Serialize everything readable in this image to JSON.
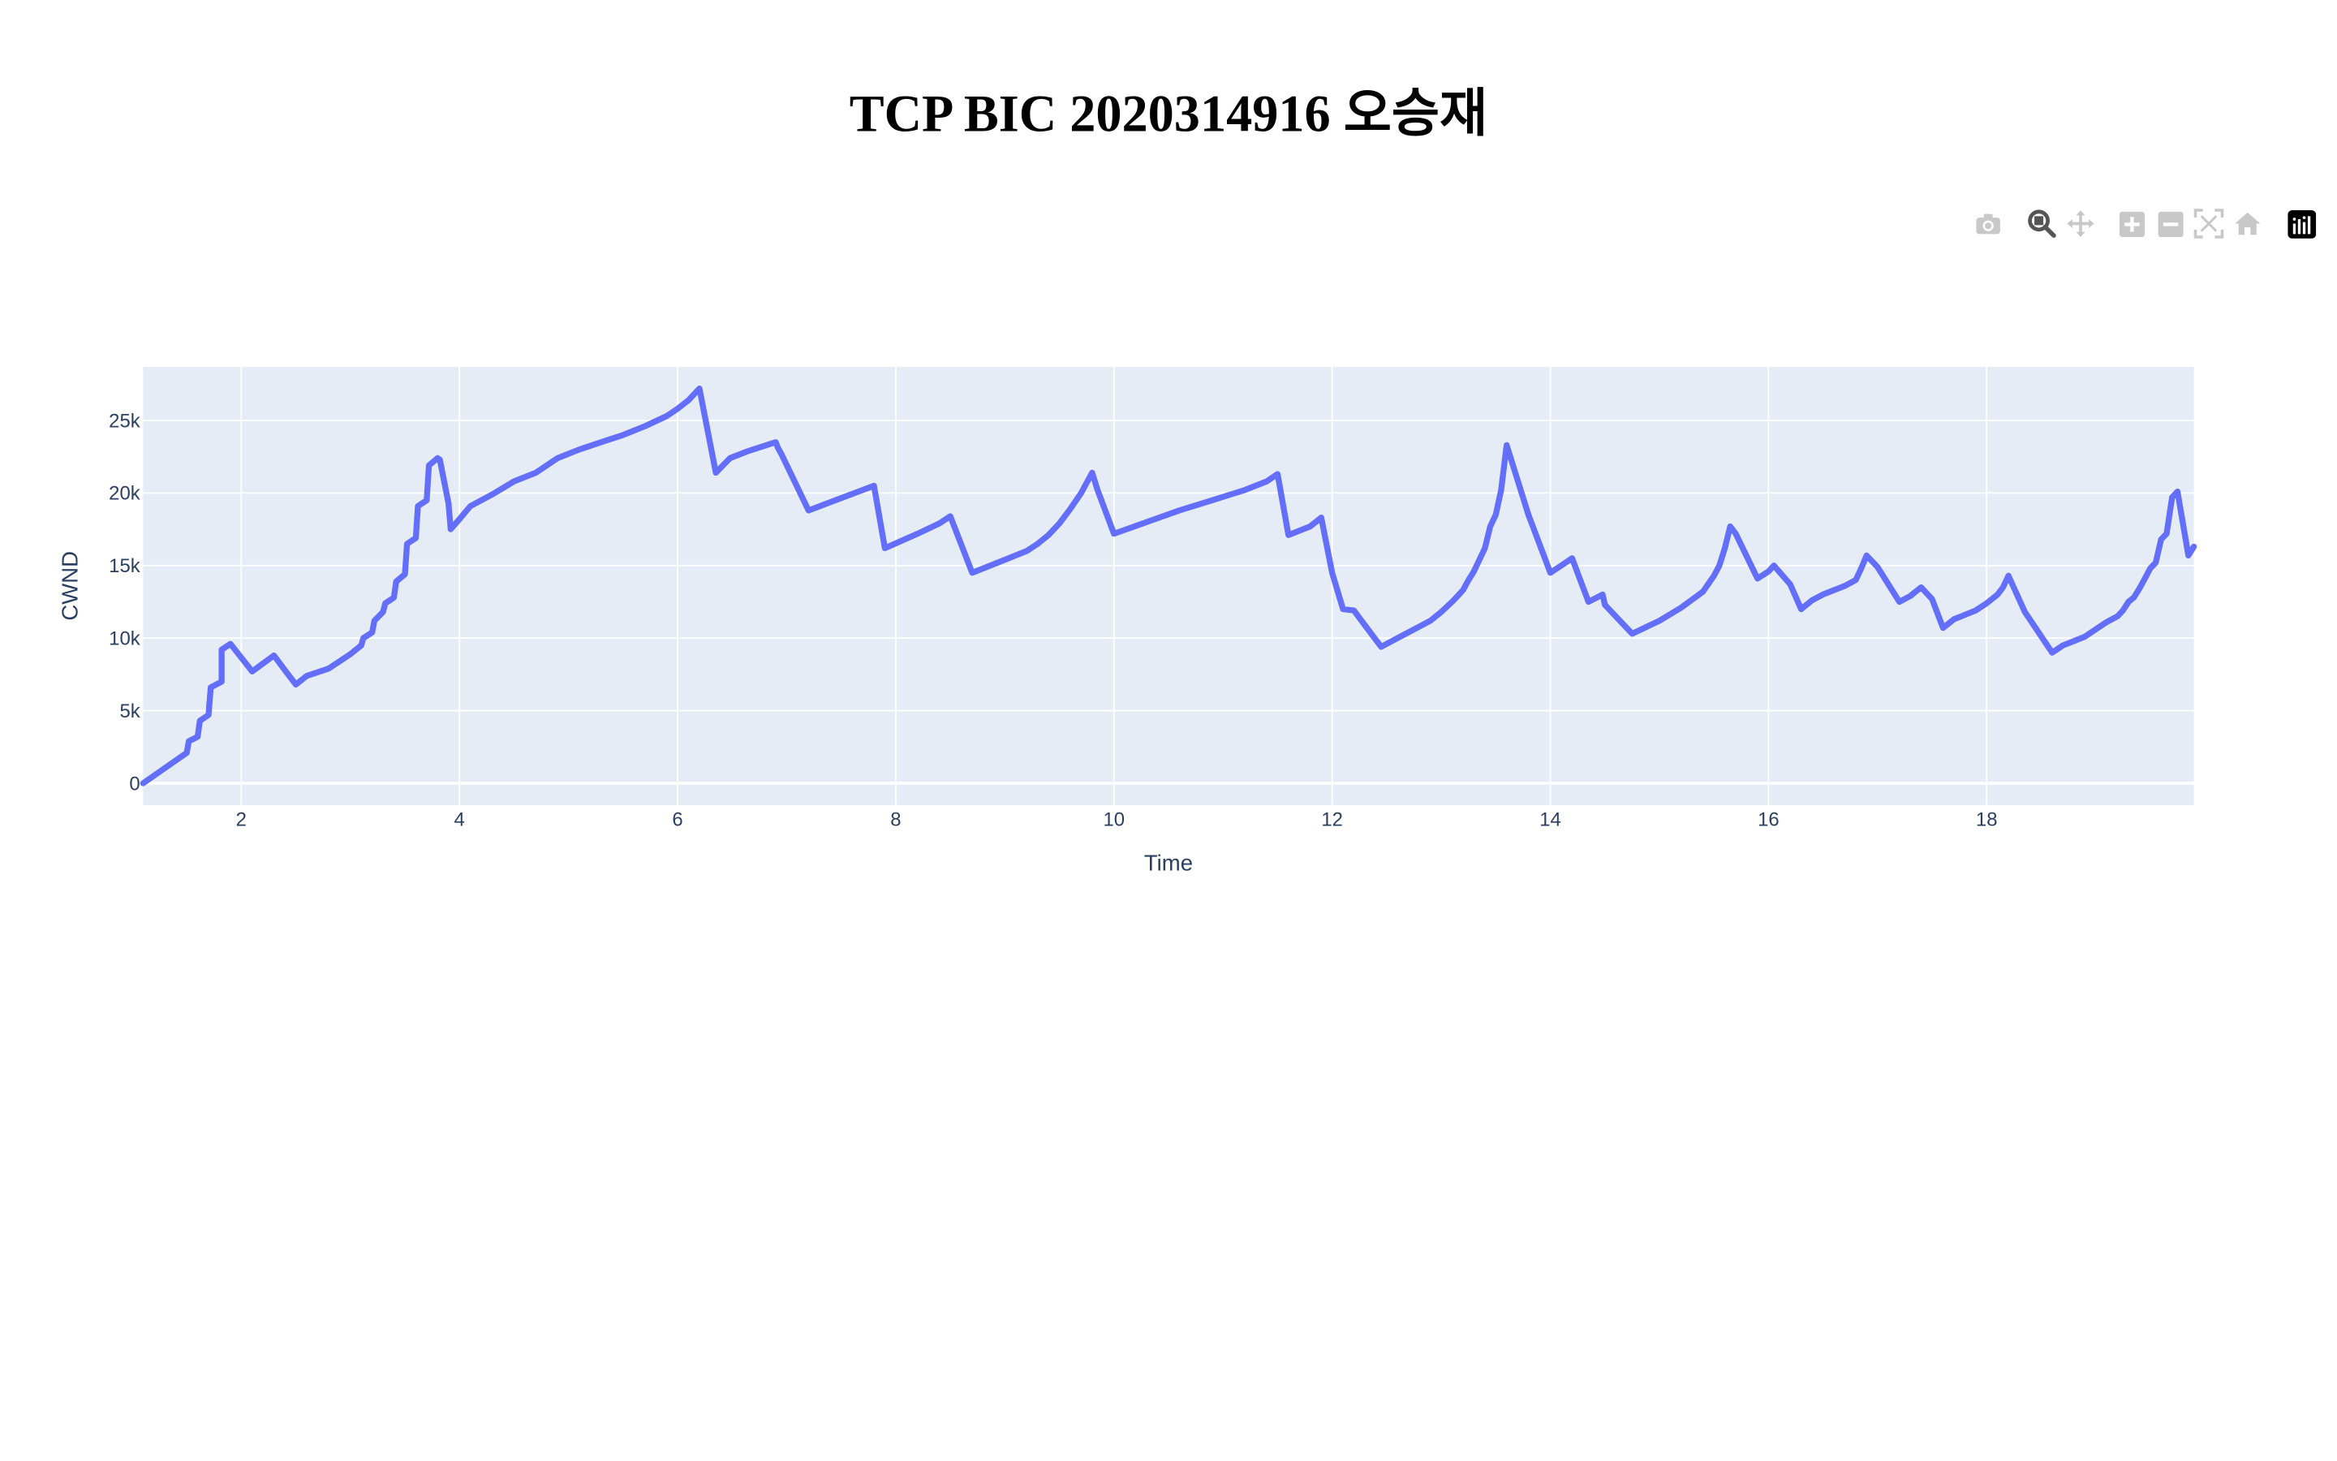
{
  "title": "TCP BIC 2020314916 오승재",
  "modebar": [
    {
      "icon": "camera-icon",
      "label": "Download plot as a png",
      "active": false
    },
    {
      "icon": "zoom-icon",
      "label": "Zoom",
      "active": true
    },
    {
      "icon": "pan-icon",
      "label": "Pan",
      "active": false
    },
    {
      "icon": "zoom-in-icon",
      "label": "Zoom in",
      "active": false
    },
    {
      "icon": "zoom-out-icon",
      "label": "Zoom out",
      "active": false
    },
    {
      "icon": "autoscale-icon",
      "label": "Autoscale",
      "active": false
    },
    {
      "icon": "home-icon",
      "label": "Reset axes",
      "active": false
    },
    {
      "icon": "plotly-logo-icon",
      "label": "Produced with Plotly",
      "active": false
    }
  ],
  "colors": {
    "plot_bg": "#e5ecf6",
    "grid": "#ffffff",
    "line": "#636efa",
    "text": "#2a3f5f"
  },
  "chart_data": {
    "type": "line",
    "title": "TCP BIC 2020314916 오승재",
    "xlabel": "Time",
    "ylabel": "CWND",
    "xlim": [
      1.1,
      19.9
    ],
    "ylim": [
      -1500,
      28700
    ],
    "x_ticks": [
      2,
      4,
      6,
      8,
      10,
      12,
      14,
      16,
      18
    ],
    "x_tick_labels": [
      "2",
      "4",
      "6",
      "8",
      "10",
      "12",
      "14",
      "16",
      "18"
    ],
    "y_ticks": [
      0,
      5000,
      10000,
      15000,
      20000,
      25000
    ],
    "y_tick_labels": [
      "0",
      "5k",
      "10k",
      "15k",
      "20k",
      "25k"
    ],
    "grid": true,
    "legend": "none",
    "series": [
      {
        "x": [
          1.1,
          1.5,
          1.52,
          1.6,
          1.62,
          1.7,
          1.72,
          1.82,
          1.82,
          1.9,
          2.1,
          2.3,
          2.4,
          2.5,
          2.6,
          2.8,
          3.0,
          3.1,
          3.12,
          3.2,
          3.22,
          3.3,
          3.32,
          3.4,
          3.42,
          3.5,
          3.52,
          3.6,
          3.62,
          3.7,
          3.72,
          3.8,
          3.82,
          3.9,
          3.92,
          4.0,
          4.1,
          4.3,
          4.5,
          4.7,
          4.9,
          5.1,
          5.3,
          5.5,
          5.7,
          5.9,
          6.0,
          6.1,
          6.2,
          6.35,
          6.48,
          6.65,
          6.9,
          6.92,
          6.95,
          7.2,
          7.8,
          7.9,
          8.2,
          8.4,
          8.5,
          8.7,
          9.0,
          9.2,
          9.3,
          9.4,
          9.5,
          9.6,
          9.7,
          9.8,
          9.85,
          10.0,
          10.3,
          10.6,
          10.9,
          11.2,
          11.4,
          11.5,
          11.6,
          11.8,
          11.9,
          12.0,
          12.1,
          12.2,
          12.3,
          12.45,
          12.6,
          12.8,
          12.9,
          13.0,
          13.1,
          13.15,
          13.2,
          13.25,
          13.3,
          13.35,
          13.4,
          13.45,
          13.5,
          13.55,
          13.6,
          13.8,
          14.0,
          14.1,
          14.2,
          14.35,
          14.48,
          14.5,
          14.55,
          14.75,
          15.0,
          15.2,
          15.4,
          15.5,
          15.55,
          15.6,
          15.65,
          15.7,
          15.9,
          16.0,
          16.05,
          16.2,
          16.3,
          16.4,
          16.5,
          16.7,
          16.8,
          16.85,
          16.9,
          17.0,
          17.2,
          17.3,
          17.4,
          17.5,
          17.6,
          17.7,
          17.9,
          18.0,
          18.1,
          18.15,
          18.2,
          18.35,
          18.6,
          18.7,
          18.8,
          18.9,
          19.0,
          19.1,
          19.2,
          19.25,
          19.3,
          19.35,
          19.4,
          19.45,
          19.5,
          19.55,
          19.6,
          19.65,
          19.7,
          19.75,
          19.85,
          19.9
        ],
        "y": [
          0,
          2100,
          2900,
          3200,
          4300,
          4700,
          6600,
          7000,
          9200,
          9600,
          7700,
          8800,
          7800,
          6800,
          7400,
          7900,
          8900,
          9500,
          10000,
          10400,
          11200,
          11800,
          12400,
          12800,
          13900,
          14400,
          16500,
          16900,
          19100,
          19500,
          21900,
          22400,
          22300,
          19300,
          17500,
          18200,
          19100,
          19900,
          20800,
          21400,
          22400,
          23000,
          23500,
          24000,
          24600,
          25300,
          25800,
          26400,
          27200,
          21400,
          22400,
          22900,
          23500,
          23100,
          22700,
          18800,
          20500,
          16200,
          17200,
          17900,
          18400,
          14500,
          15400,
          16000,
          16500,
          17100,
          17900,
          18900,
          20000,
          21400,
          20200,
          17200,
          18000,
          18800,
          19500,
          20200,
          20800,
          21300,
          17100,
          17700,
          18300,
          14500,
          12000,
          11900,
          10900,
          9400,
          10000,
          10800,
          11200,
          11800,
          12500,
          12900,
          13300,
          14000,
          14600,
          15400,
          16200,
          17700,
          18500,
          20200,
          23300,
          18500,
          14500,
          15000,
          15500,
          12500,
          13000,
          12300,
          11900,
          10300,
          11200,
          12100,
          13200,
          14300,
          15000,
          16200,
          17700,
          17200,
          14100,
          14600,
          15000,
          13700,
          12000,
          12600,
          13000,
          13600,
          14000,
          14800,
          15700,
          14900,
          12500,
          12900,
          13500,
          12700,
          10700,
          11300,
          11900,
          12400,
          13000,
          13500,
          14300,
          11800,
          9000,
          9500,
          9800,
          10100,
          10600,
          11100,
          11500,
          11900,
          12500,
          12800,
          13400,
          14100,
          14800,
          15200,
          16800,
          17200,
          19700,
          20100,
          15700,
          16300
        ]
      }
    ]
  }
}
